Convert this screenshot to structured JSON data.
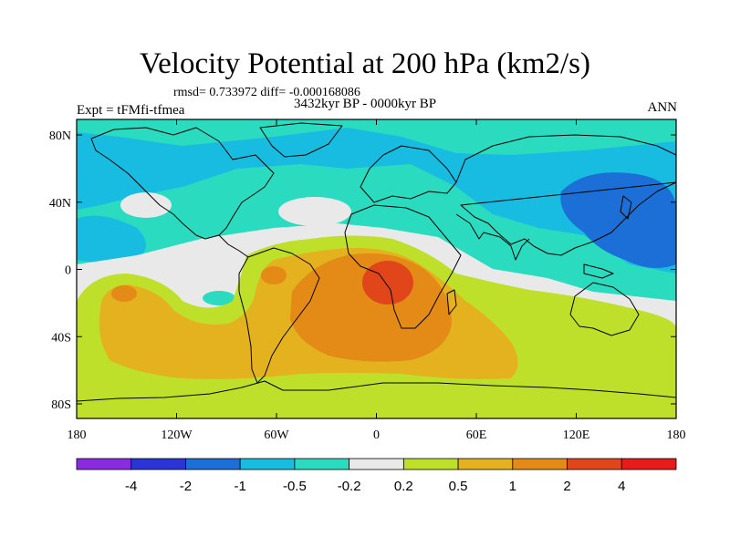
{
  "header": {
    "title": "Velocity Potential at 200 hPa (km2/s)",
    "stats": "rmsd= 0.733972 diff= -0.000168086",
    "period": "3432kyr BP - 0000kyr BP",
    "experiment": "Expt = tFMfi-tfmea",
    "season": "ANN"
  },
  "map": {
    "lon_ticks": [
      "180",
      "120W",
      "60W",
      "0",
      "60E",
      "120E",
      "180"
    ],
    "lat_ticks": [
      "80N",
      "40N",
      "0",
      "40S",
      "80S"
    ]
  },
  "colorbar": {
    "colors": [
      "#8a2be2",
      "#2a35d8",
      "#1b6fd6",
      "#17bce0",
      "#2bdbbf",
      "#e9e9e9",
      "#bfe02a",
      "#e3b21e",
      "#e48a17",
      "#e0461a",
      "#e81a1a"
    ],
    "labels": [
      "-4",
      "-2",
      "-1",
      "-0.5",
      "-0.2",
      "0.2",
      "0.5",
      "1",
      "2",
      "4"
    ]
  },
  "field_colors": {
    "strong_negative": "#1b6fd6",
    "negative": "#17bce0",
    "weak_negative": "#2bdbbf",
    "neutral": "#e9e9e9",
    "weak_positive": "#bfe02a",
    "positive": "#e3b21e",
    "strong_positive": "#e48a17",
    "max_positive": "#e0461a"
  }
}
